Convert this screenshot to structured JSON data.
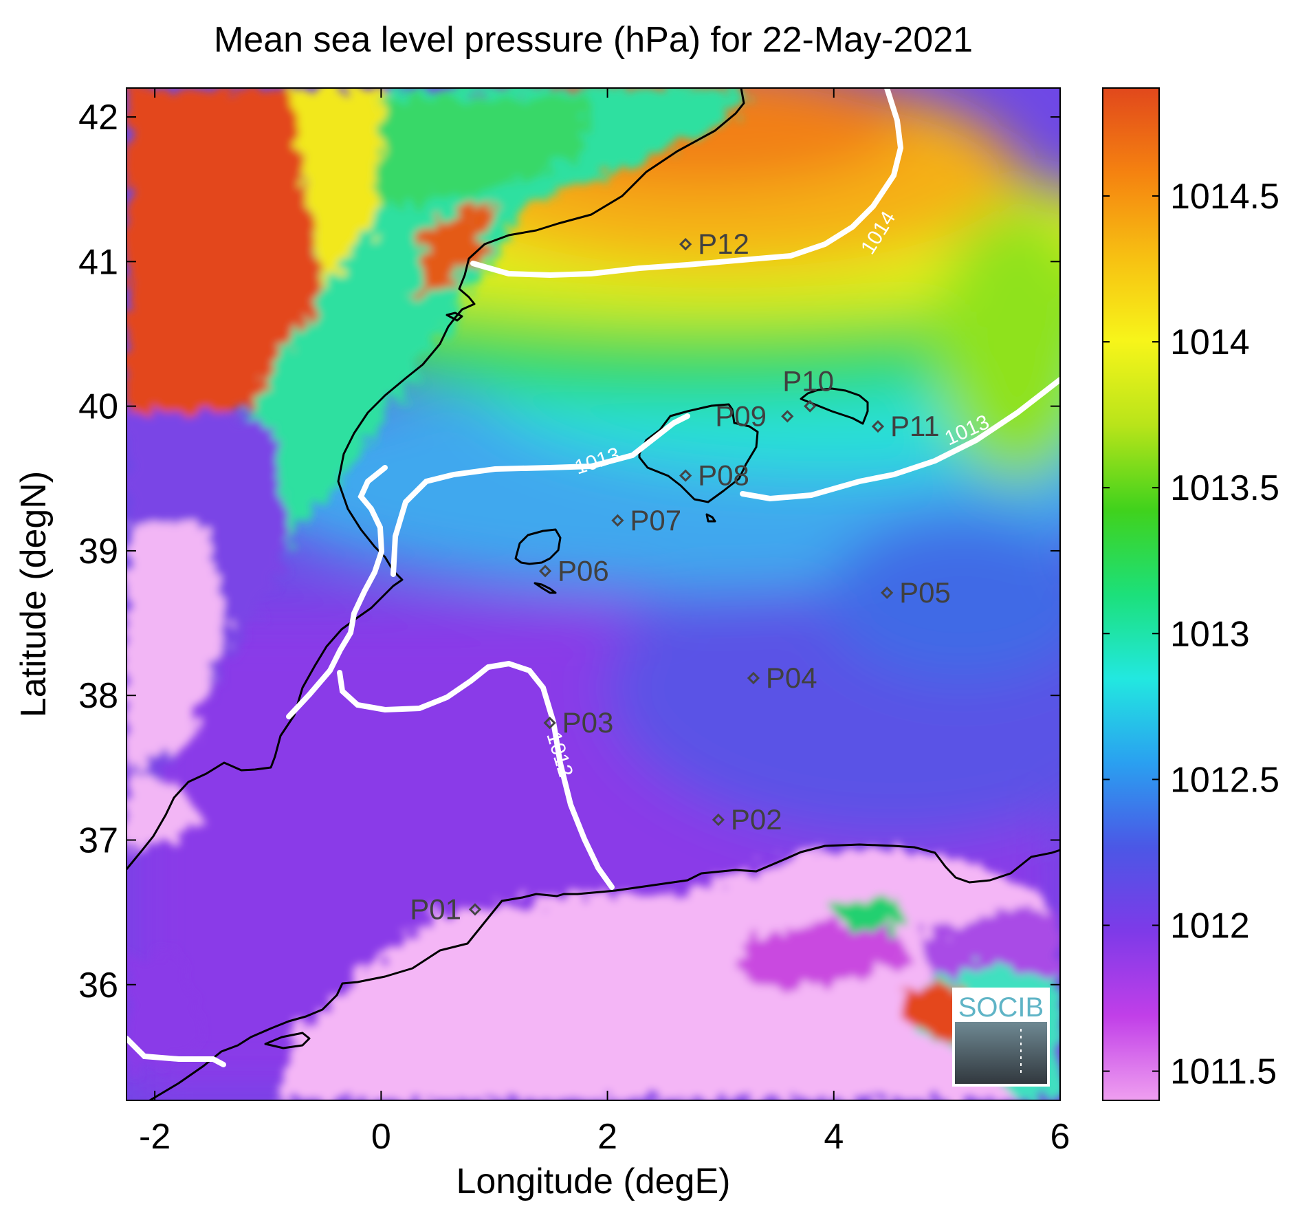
{
  "title": "Mean sea level pressure (hPa) for 22-May-2021",
  "x_axis": {
    "label": "Longitude (degE)",
    "range": [
      -2.25,
      6
    ],
    "ticks": [
      "-2",
      "0",
      "2",
      "4",
      "6"
    ],
    "tick_values": [
      -2,
      0,
      2,
      4,
      6
    ]
  },
  "y_axis": {
    "label": "Latitude (degN)",
    "range": [
      35.2,
      42.2
    ],
    "ticks": [
      "36",
      "37",
      "38",
      "39",
      "40",
      "41",
      "42"
    ],
    "tick_values": [
      36,
      37,
      38,
      39,
      40,
      41,
      42
    ]
  },
  "colorbar": {
    "range": [
      1011.4,
      1014.87
    ],
    "ticks": [
      "1011.5",
      "1012",
      "1012.5",
      "1013",
      "1013.5",
      "1014",
      "1014.5"
    ],
    "tick_values": [
      1011.5,
      1012,
      1012.5,
      1013,
      1013.5,
      1014,
      1014.5
    ],
    "colormap": [
      "#ef9ff0",
      "#c13fe8",
      "#7e3ae8",
      "#4b57e6",
      "#2aa0f0",
      "#22e8e0",
      "#1ce07a",
      "#40d21c",
      "#b8e41a",
      "#f7f51a",
      "#f7c012",
      "#f58210",
      "#e1481c"
    ]
  },
  "contour_labels": [
    "1012",
    "1013",
    "1013",
    "1014"
  ],
  "stations": [
    {
      "id": "P01",
      "lon": 0.83,
      "lat": 36.52
    },
    {
      "id": "P02",
      "lon": 2.98,
      "lat": 37.14
    },
    {
      "id": "P03",
      "lon": 1.49,
      "lat": 37.81
    },
    {
      "id": "P04",
      "lon": 3.29,
      "lat": 38.12
    },
    {
      "id": "P05",
      "lon": 4.47,
      "lat": 38.71
    },
    {
      "id": "P06",
      "lon": 1.45,
      "lat": 38.86
    },
    {
      "id": "P07",
      "lon": 2.09,
      "lat": 39.21
    },
    {
      "id": "P08",
      "lon": 2.69,
      "lat": 39.52
    },
    {
      "id": "P09",
      "lon": 3.59,
      "lat": 39.93
    },
    {
      "id": "P10",
      "lon": 3.79,
      "lat": 40.0
    },
    {
      "id": "P11",
      "lon": 4.39,
      "lat": 39.86
    },
    {
      "id": "P12",
      "lon": 2.69,
      "lat": 41.12
    }
  ],
  "logo": {
    "text": "SOCIB"
  }
}
